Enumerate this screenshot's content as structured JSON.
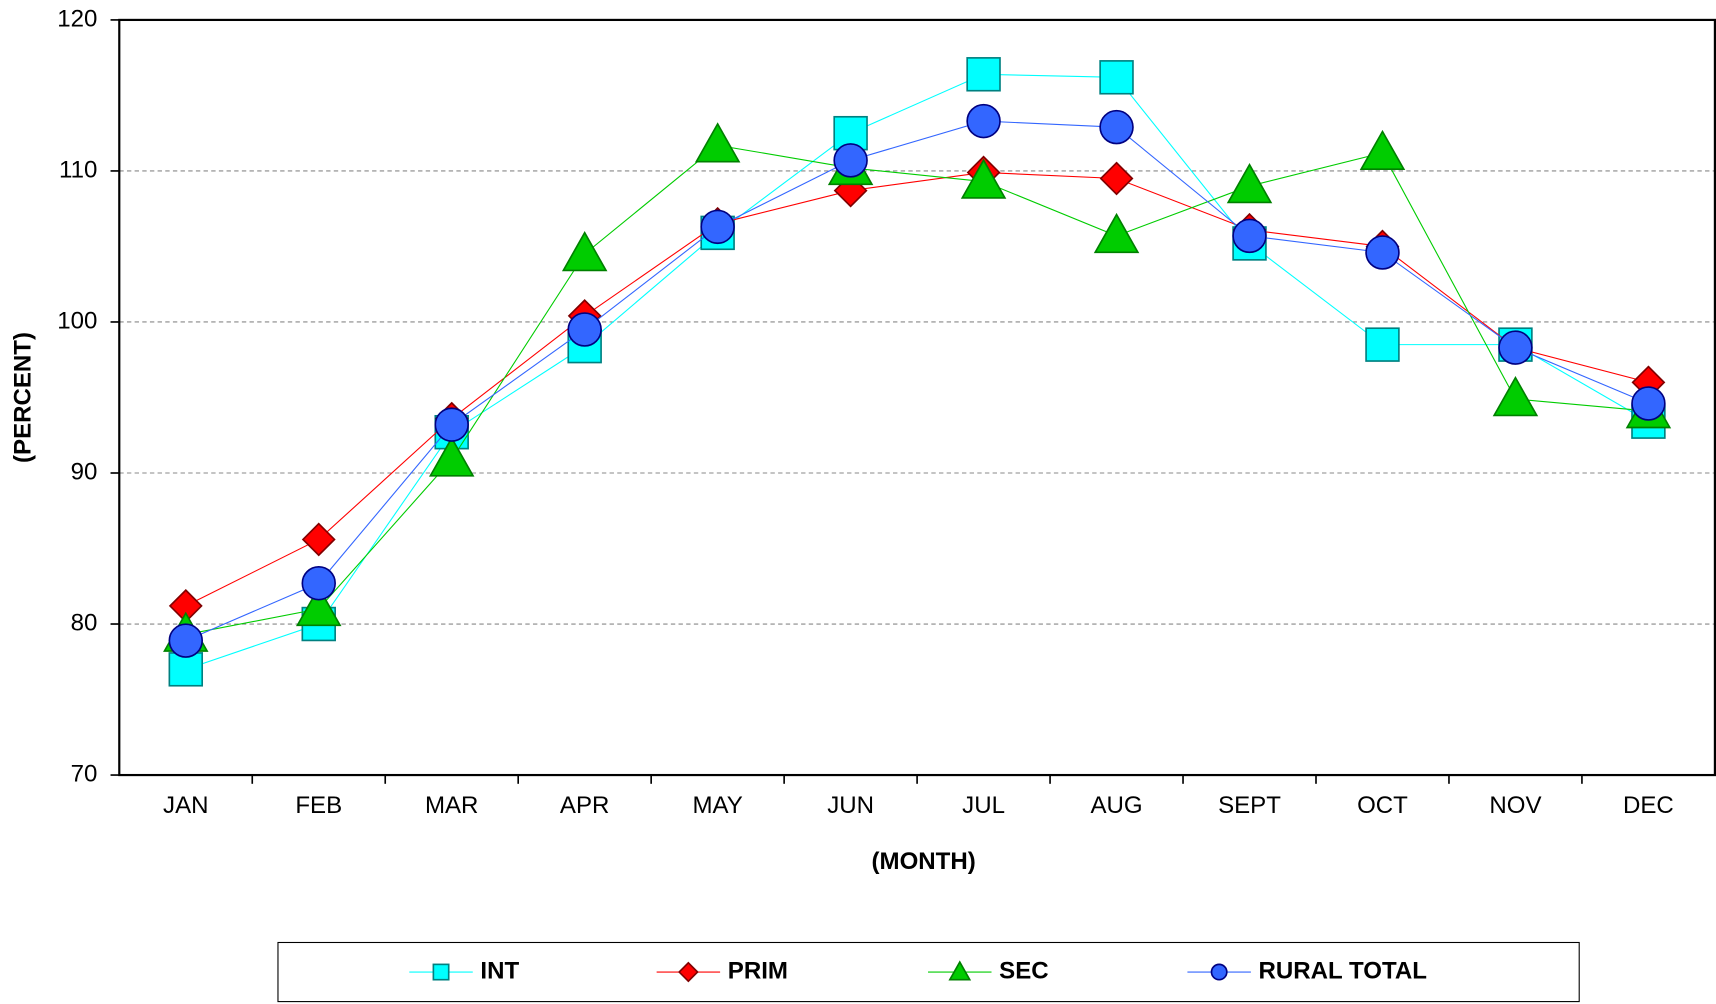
{
  "chart_data": {
    "type": "line",
    "x_label": "(MONTH)",
    "y_label": "(PERCENT)",
    "categories": [
      "JAN",
      "FEB",
      "MAR",
      "APR",
      "MAY",
      "JUN",
      "JUL",
      "AUG",
      "SEPT",
      "OCT",
      "NOV",
      "DEC"
    ],
    "ylim": [
      70,
      120
    ],
    "yticks": [
      70,
      80,
      90,
      100,
      110,
      120
    ],
    "grid": true,
    "legend": "bottom",
    "series": [
      {
        "name": "INT",
        "color": "#00ffff",
        "marker": "square",
        "values": [
          77.0,
          80.0,
          92.7,
          98.4,
          105.9,
          112.5,
          116.4,
          116.2,
          105.2,
          98.5,
          98.5,
          93.4
        ]
      },
      {
        "name": "PRIM",
        "color": "#ff0000",
        "marker": "diamond",
        "values": [
          81.2,
          85.6,
          93.6,
          100.4,
          106.5,
          108.7,
          109.9,
          109.5,
          106.1,
          105.0,
          98.3,
          96.0
        ]
      },
      {
        "name": "SEC",
        "color": "#00cc00",
        "marker": "triangle",
        "values": [
          79.3,
          81.0,
          90.9,
          104.5,
          111.7,
          110.2,
          109.3,
          105.7,
          109.0,
          111.2,
          94.9,
          94.1
        ]
      },
      {
        "name": "RURAL TOTAL",
        "color": "#3366ff",
        "marker": "circle",
        "values": [
          78.9,
          82.7,
          93.2,
          99.5,
          106.3,
          110.7,
          113.3,
          112.9,
          105.7,
          104.6,
          98.3,
          94.6
        ]
      }
    ]
  }
}
